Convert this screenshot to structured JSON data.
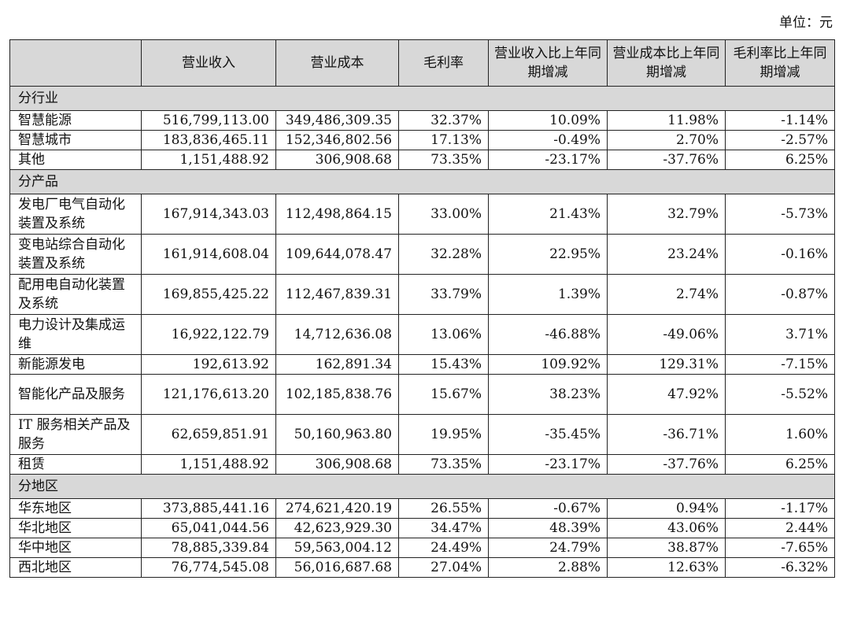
{
  "unit_label": "单位：元",
  "headers": [
    "",
    "营业收入",
    "营业成本",
    "毛利率",
    "营业收入比上年同期增减",
    "营业成本比上年同期增减",
    "毛利率比上年同期增减"
  ],
  "sections": [
    {
      "title": "分行业",
      "rows": [
        {
          "name": "智慧能源",
          "cells": [
            "516,799,113.00",
            "349,486,309.35",
            "32.37%",
            "10.09%",
            "11.98%",
            "-1.14%"
          ]
        },
        {
          "name": "智慧城市",
          "cells": [
            "183,836,465.11",
            "152,346,802.56",
            "17.13%",
            "-0.49%",
            "2.70%",
            "-2.57%"
          ]
        },
        {
          "name": "其他",
          "cells": [
            "1,151,488.92",
            "306,908.68",
            "73.35%",
            "-23.17%",
            "-37.76%",
            "6.25%"
          ]
        }
      ]
    },
    {
      "title": "分产品",
      "rows": [
        {
          "name": "发电厂电气自动化装置及系统",
          "cells": [
            "167,914,343.03",
            "112,498,864.15",
            "33.00%",
            "21.43%",
            "32.79%",
            "-5.73%"
          ]
        },
        {
          "name": "变电站综合自动化装置及系统",
          "cells": [
            "161,914,608.04",
            "109,644,078.47",
            "32.28%",
            "22.95%",
            "23.24%",
            "-0.16%"
          ]
        },
        {
          "name": "配用电自动化装置及系统",
          "cells": [
            "169,855,425.22",
            "112,467,839.31",
            "33.79%",
            "1.39%",
            "2.74%",
            "-0.87%"
          ]
        },
        {
          "name": "电力设计及集成运维",
          "cells": [
            "16,922,122.79",
            "14,712,636.08",
            "13.06%",
            "-46.88%",
            "-49.06%",
            "3.71%"
          ]
        },
        {
          "name": "新能源发电",
          "cells": [
            "192,613.92",
            "162,891.34",
            "15.43%",
            "109.92%",
            "129.31%",
            "-7.15%"
          ]
        },
        {
          "name": "智能化产品及服务",
          "cells": [
            "121,176,613.20",
            "102,185,838.76",
            "15.67%",
            "38.23%",
            "47.92%",
            "-5.52%"
          ]
        },
        {
          "name": "IT 服务相关产品及服务",
          "cells": [
            "62,659,851.91",
            "50,160,963.80",
            "19.95%",
            "-35.45%",
            "-36.71%",
            "1.60%"
          ]
        },
        {
          "name": "租赁",
          "cells": [
            "1,151,488.92",
            "306,908.68",
            "73.35%",
            "-23.17%",
            "-37.76%",
            "6.25%"
          ]
        }
      ]
    },
    {
      "title": "分地区",
      "rows": [
        {
          "name": "华东地区",
          "cells": [
            "373,885,441.16",
            "274,621,420.19",
            "26.55%",
            "-0.67%",
            "0.94%",
            "-1.17%"
          ]
        },
        {
          "name": "华北地区",
          "cells": [
            "65,041,044.56",
            "42,623,929.30",
            "34.47%",
            "48.39%",
            "43.06%",
            "2.44%"
          ]
        },
        {
          "name": "华中地区",
          "cells": [
            "78,885,339.84",
            "59,563,004.12",
            "24.49%",
            "24.79%",
            "38.87%",
            "-7.65%"
          ]
        },
        {
          "name": "西北地区",
          "cells": [
            "76,774,545.08",
            "56,016,687.68",
            "27.04%",
            "2.88%",
            "12.63%",
            "-6.32%"
          ]
        }
      ]
    }
  ]
}
